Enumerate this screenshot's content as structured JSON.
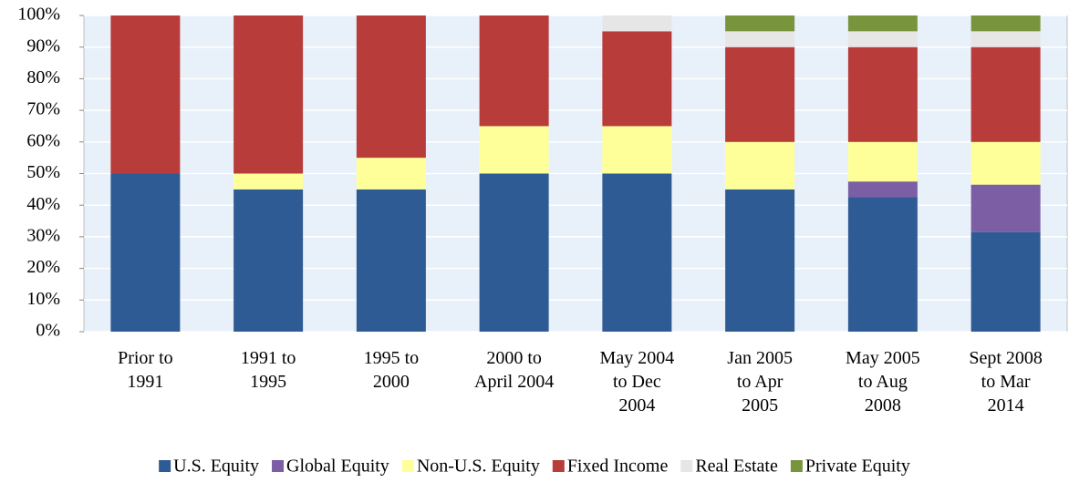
{
  "chart_data": {
    "type": "stacked_bar",
    "categories": [
      "Prior to\n1991",
      "1991 to\n1995",
      "1995 to\n2000",
      "2000 to\nApril 2004",
      "May 2004\nto Dec\n2004",
      "Jan 2005\nto Apr\n2005",
      "May 2005\nto Aug\n2008",
      "Sept 2008\nto Mar\n2014"
    ],
    "series": [
      {
        "name": "U.S. Equity",
        "color": "#2f5b95",
        "values": [
          50,
          45,
          45,
          50,
          50,
          45,
          42.5,
          31.5
        ]
      },
      {
        "name": "Global Equity",
        "color": "#7b5ea3",
        "values": [
          0,
          0,
          0,
          0,
          0,
          0,
          5,
          15
        ]
      },
      {
        "name": "Non-U.S. Equity",
        "color": "#ffff99",
        "values": [
          0,
          5,
          10,
          15,
          15,
          15,
          12.5,
          13.5
        ]
      },
      {
        "name": "Fixed Income",
        "color": "#b83c3a",
        "values": [
          50,
          50,
          45,
          35,
          30,
          30,
          30,
          30
        ]
      },
      {
        "name": "Real Estate",
        "color": "#e6e6e6",
        "values": [
          0,
          0,
          0,
          0,
          5,
          5,
          5,
          5
        ]
      },
      {
        "name": "Private Equity",
        "color": "#78953e",
        "values": [
          0,
          0,
          0,
          0,
          0,
          5,
          5,
          5
        ]
      }
    ],
    "ylim": [
      0,
      100
    ],
    "yticks": [
      {
        "value": 0,
        "label": "0%"
      },
      {
        "value": 10,
        "label": "10%"
      },
      {
        "value": 20,
        "label": "20%"
      },
      {
        "value": 30,
        "label": "30%"
      },
      {
        "value": 40,
        "label": "40%"
      },
      {
        "value": 50,
        "label": "50%"
      },
      {
        "value": 60,
        "label": "60%"
      },
      {
        "value": 70,
        "label": "70%"
      },
      {
        "value": 80,
        "label": "80%"
      },
      {
        "value": 90,
        "label": "90%"
      },
      {
        "value": 100,
        "label": "100%"
      }
    ],
    "grid": true,
    "legend": "bottom"
  }
}
